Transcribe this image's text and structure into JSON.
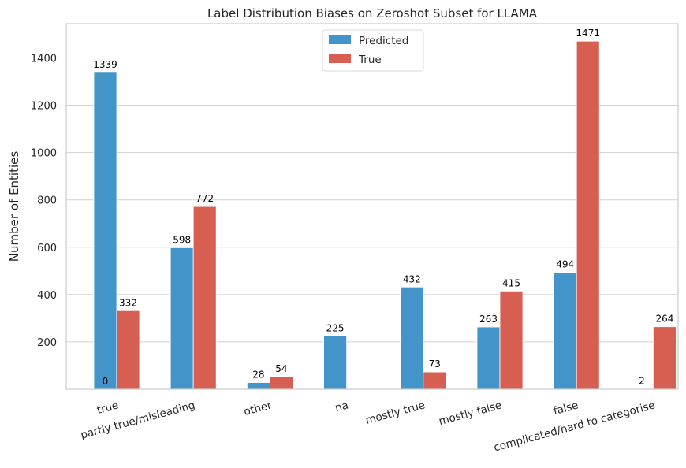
{
  "chart_data": {
    "type": "bar",
    "title": "Label Distribution Biases on Zeroshot Subset for LLAMA",
    "xlabel": "",
    "ylabel": "Number of Entities",
    "categories": [
      "true",
      "partly true/misleading",
      "other",
      "na",
      "mostly true",
      "mostly false",
      "false",
      "complicated/hard to categorise"
    ],
    "series": [
      {
        "name": "Predicted",
        "color": "#4394c9",
        "values": [
          0,
          598,
          28,
          225,
          432,
          263,
          494,
          2
        ],
        "labels": [
          "0",
          "598",
          "28",
          "225",
          "432",
          "263",
          "494",
          "2"
        ]
      },
      {
        "name": "True",
        "color": "#d65f52",
        "values": [
          332,
          772,
          54,
          0,
          73,
          415,
          1471,
          264
        ],
        "labels": [
          "332",
          "772",
          "54",
          "",
          "73",
          "415",
          "1471",
          "264"
        ]
      }
    ],
    "extra_bar": {
      "category_index": 0,
      "series_index": 0,
      "value": 1339,
      "label": "1339"
    },
    "yticks": [
      200,
      400,
      600,
      800,
      1000,
      1200,
      1400
    ],
    "ylim": [
      0,
      1545
    ],
    "grid": true,
    "legend_position": "top-center"
  }
}
